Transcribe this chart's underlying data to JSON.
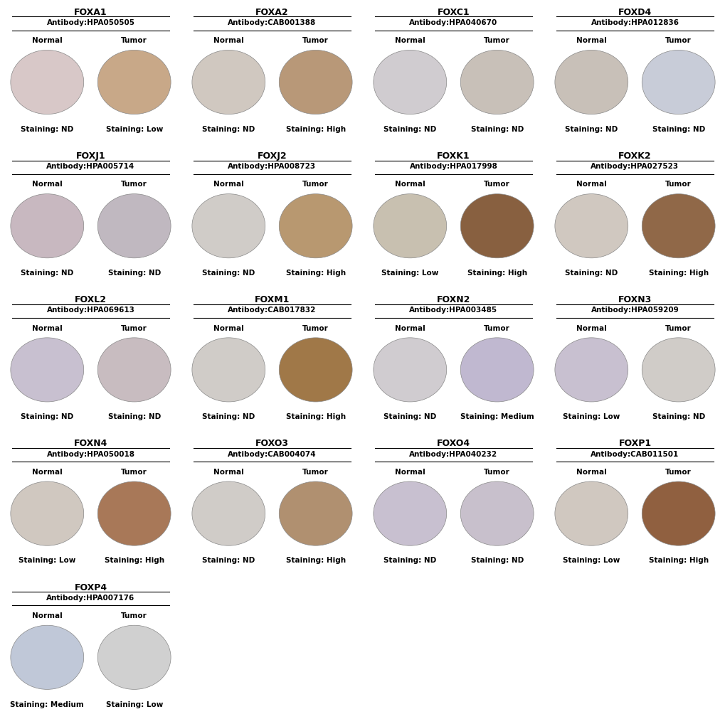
{
  "panels": [
    {
      "gene": "FOXA1",
      "antibody": "Antibody:HPA050505",
      "normal_staining": "ND",
      "tumor_staining": "Low",
      "normal_color": "#d8c8c8",
      "tumor_color": "#c8a888",
      "row": 0,
      "col": 0
    },
    {
      "gene": "FOXA2",
      "antibody": "Antibody:CAB001388",
      "normal_staining": "ND",
      "tumor_staining": "High",
      "normal_color": "#d0c8c0",
      "tumor_color": "#b89878",
      "row": 0,
      "col": 1
    },
    {
      "gene": "FOXC1",
      "antibody": "Antibody:HPA040670",
      "normal_staining": "ND",
      "tumor_staining": "ND",
      "normal_color": "#d0ccd0",
      "tumor_color": "#c8c0b8",
      "row": 0,
      "col": 2
    },
    {
      "gene": "FOXD4",
      "antibody": "Antibody:HPA012836",
      "normal_staining": "ND",
      "tumor_staining": "ND",
      "normal_color": "#c8c0b8",
      "tumor_color": "#c8ccd8",
      "row": 0,
      "col": 3
    },
    {
      "gene": "FOXJ1",
      "antibody": "Antibody:HPA005714",
      "normal_staining": "ND",
      "tumor_staining": "ND",
      "normal_color": "#c8b8c0",
      "tumor_color": "#c0b8c0",
      "row": 1,
      "col": 0
    },
    {
      "gene": "FOXJ2",
      "antibody": "Antibody:HPA008723",
      "normal_staining": "ND",
      "tumor_staining": "High",
      "normal_color": "#d0ccc8",
      "tumor_color": "#b89870",
      "row": 1,
      "col": 1
    },
    {
      "gene": "FOXK1",
      "antibody": "Antibody:HPA017998",
      "normal_staining": "Low",
      "tumor_staining": "High",
      "normal_color": "#c8c0b0",
      "tumor_color": "#886040",
      "row": 1,
      "col": 2
    },
    {
      "gene": "FOXK2",
      "antibody": "Antibody:HPA027523",
      "normal_staining": "ND",
      "tumor_staining": "High",
      "normal_color": "#d0c8c0",
      "tumor_color": "#906848",
      "row": 1,
      "col": 3
    },
    {
      "gene": "FOXL2",
      "antibody": "Antibody:HPA069613",
      "normal_staining": "ND",
      "tumor_staining": "ND",
      "normal_color": "#c8c0d0",
      "tumor_color": "#c8bcc0",
      "row": 2,
      "col": 0
    },
    {
      "gene": "FOXM1",
      "antibody": "Antibody:CAB017832",
      "normal_staining": "ND",
      "tumor_staining": "High",
      "normal_color": "#d0ccc8",
      "tumor_color": "#a07848",
      "row": 2,
      "col": 1
    },
    {
      "gene": "FOXN2",
      "antibody": "Antibody:HPA003485",
      "normal_staining": "ND",
      "tumor_staining": "Medium",
      "normal_color": "#d0ccd0",
      "tumor_color": "#c0b8d0",
      "row": 2,
      "col": 2
    },
    {
      "gene": "FOXN3",
      "antibody": "Antibody:HPA059209",
      "normal_staining": "Low",
      "tumor_staining": "ND",
      "normal_color": "#c8c0d0",
      "tumor_color": "#d0ccc8",
      "row": 2,
      "col": 3
    },
    {
      "gene": "FOXN4",
      "antibody": "Antibody:HPA050018",
      "normal_staining": "Low",
      "tumor_staining": "High",
      "normal_color": "#d0c8c0",
      "tumor_color": "#a87858",
      "row": 3,
      "col": 0
    },
    {
      "gene": "FOXO3",
      "antibody": "Antibody:CAB004074",
      "normal_staining": "ND",
      "tumor_staining": "High",
      "normal_color": "#d0ccc8",
      "tumor_color": "#b09070",
      "row": 3,
      "col": 1
    },
    {
      "gene": "FOXO4",
      "antibody": "Antibody:HPA040232",
      "normal_staining": "ND",
      "tumor_staining": "ND",
      "normal_color": "#c8c0d0",
      "tumor_color": "#c8c0cc",
      "row": 3,
      "col": 2
    },
    {
      "gene": "FOXP1",
      "antibody": "Antibody:CAB011501",
      "normal_staining": "Low",
      "tumor_staining": "High",
      "normal_color": "#d0c8c0",
      "tumor_color": "#906040",
      "row": 3,
      "col": 3
    },
    {
      "gene": "FOXP4",
      "antibody": "Antibody:HPA007176",
      "normal_staining": "Medium",
      "tumor_staining": "Low",
      "normal_color": "#c0c8d8",
      "tumor_color": "#d0d0d0",
      "row": 4,
      "col": 0
    }
  ],
  "ncols": 4,
  "nrows": 5,
  "bg_color": "#ffffff",
  "title_fontsize": 9,
  "antibody_fontsize": 7.5,
  "label_fontsize": 7.5,
  "staining_fontsize": 7.5
}
